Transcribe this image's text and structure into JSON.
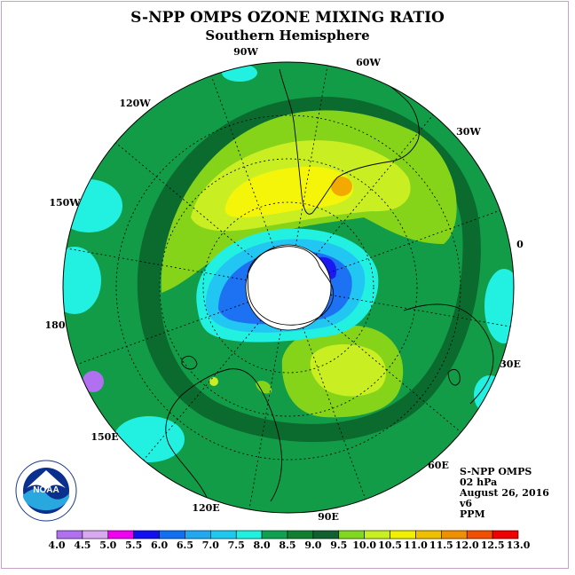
{
  "title": "S-NPP OMPS OZONE MIXING RATIO",
  "subtitle": "Southern Hemisphere",
  "longitude_labels": {
    "90w": "90W",
    "60w": "60W",
    "120w": "120W",
    "30w": "30W",
    "150w": "150W",
    "0": "0",
    "180": "180",
    "30e": "30E",
    "150e": "150E",
    "60e": "60E",
    "120e": "120E",
    "90e": "90E"
  },
  "info": {
    "instrument": "S-NPP OMPS",
    "pressure": "02 hPa",
    "date": "August 26, 2016",
    "version": "v6",
    "units": "PPM"
  },
  "colorbar": {
    "labels": [
      "4.0",
      "4.5",
      "5.0",
      "5.5",
      "6.0",
      "6.5",
      "7.0",
      "7.5",
      "8.0",
      "8.5",
      "9.0",
      "9.5",
      "10.0",
      "10.5",
      "11.0",
      "11.5",
      "12.0",
      "12.5",
      "13.0"
    ],
    "colors": [
      "#b070f0",
      "#d8a8f0",
      "#f000f0",
      "#1010f0",
      "#1070f0",
      "#20a8f0",
      "#20c8f0",
      "#20f0e0",
      "#10a050",
      "#108030",
      "#106030",
      "#80d820",
      "#c8f020",
      "#f0f000",
      "#f0c000",
      "#f09000",
      "#f05000",
      "#f00000",
      "#885030"
    ]
  },
  "map_colors": {
    "background": "#139c48",
    "ring": "#0b6b2e",
    "green_light": "#86d41a",
    "yellow_green": "#c9ee22",
    "yellow": "#f5f50a",
    "orange": "#f2a900",
    "cyan": "#22f0e0",
    "sky": "#22c6f2",
    "blue": "#1c72f2",
    "deep_blue": "#1a1af0"
  },
  "logo_text": "NOAA"
}
